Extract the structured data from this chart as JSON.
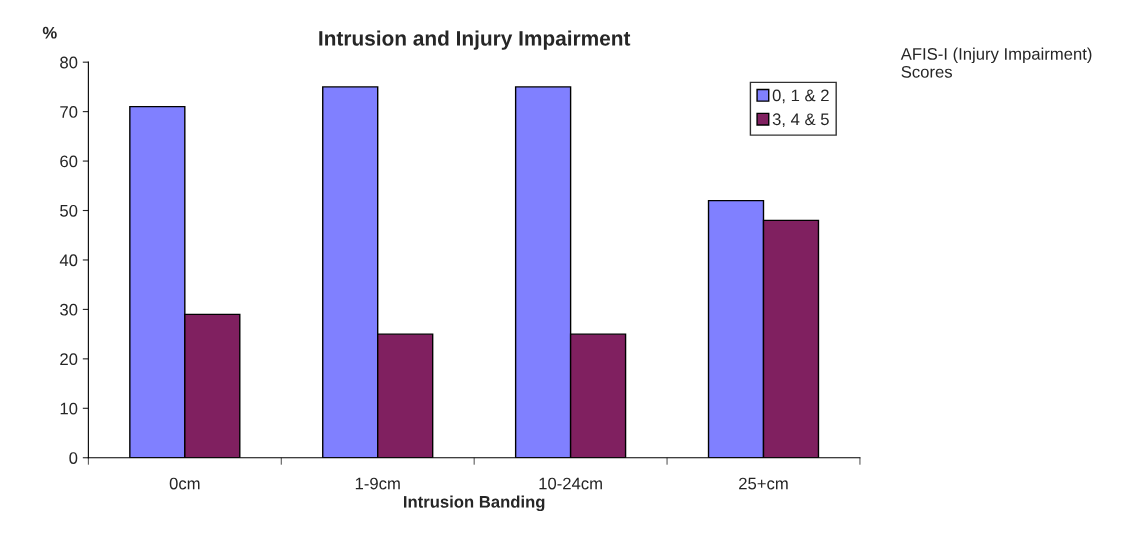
{
  "chart_data": {
    "type": "bar",
    "title": "Intrusion and Injury Impairment",
    "xlabel": "Intrusion Banding",
    "ylabel": "%",
    "legend_title": "AFIS-I (Injury Impairment) Scores",
    "categories": [
      "0cm",
      "1-9cm",
      "10-24cm",
      "25+cm"
    ],
    "series": [
      {
        "name": "0, 1 & 2",
        "color": "#8080ff",
        "values": [
          71,
          75,
          75,
          52
        ]
      },
      {
        "name": "3, 4 & 5",
        "color": "#802060",
        "values": [
          29,
          25,
          25,
          48
        ]
      }
    ],
    "ylim": [
      0,
      80
    ],
    "yticks": [
      0,
      10,
      20,
      30,
      40,
      50,
      60,
      70,
      80
    ],
    "grid": false,
    "legend": "top right"
  }
}
